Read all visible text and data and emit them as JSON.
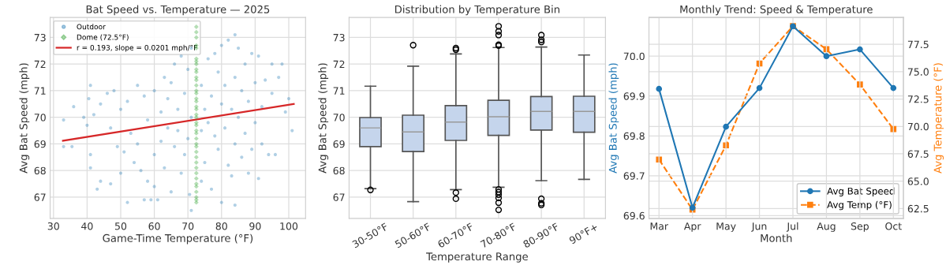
{
  "chart_data": [
    {
      "type": "scatter",
      "title": "Bat Speed vs. Temperature — 2025",
      "xlabel": "Game-Time Temperature (°F)",
      "ylabel": "Avg Bat Speed (mph)",
      "xlim": [
        29,
        105
      ],
      "ylim": [
        66.2,
        73.75
      ],
      "xticks": [
        30,
        40,
        50,
        60,
        70,
        80,
        90,
        100
      ],
      "yticks": [
        67,
        68,
        69,
        70,
        71,
        72,
        73
      ],
      "grid": true,
      "legend": "top left",
      "series": [
        {
          "name": "Outdoor",
          "color": "#1f77b4",
          "marker": "circle",
          "x": [
            33,
            33,
            35.5,
            36,
            39,
            40,
            40.5,
            41,
            41,
            41,
            42,
            43,
            44,
            44,
            46,
            47,
            47,
            48,
            49,
            50,
            50,
            51,
            52,
            52,
            53,
            54,
            55,
            55,
            56,
            57,
            57,
            58,
            58,
            59,
            60,
            60,
            60,
            61,
            62,
            62,
            63,
            63,
            64,
            64,
            65,
            65,
            66,
            66,
            67,
            67,
            68,
            68,
            69,
            69,
            70,
            70,
            70.5,
            71,
            71,
            71,
            74,
            74,
            74,
            75,
            75,
            76,
            76,
            77,
            77,
            78,
            78,
            79,
            79,
            80,
            80,
            80,
            81,
            81,
            82,
            82,
            83,
            83,
            84,
            84,
            84,
            84,
            85,
            85,
            86,
            86,
            87,
            87,
            88,
            88,
            89,
            89,
            90,
            90,
            91,
            91,
            92,
            92,
            93,
            94,
            95,
            95,
            96,
            97,
            98,
            99,
            100,
            101
          ],
          "values": [
            69.9,
            68.9,
            68.9,
            70.4,
            70.0,
            69.7,
            70.7,
            71.2,
            68.6,
            68.1,
            70.1,
            67.3,
            67.6,
            70.5,
            70.9,
            69.6,
            67.5,
            71.0,
            68.9,
            67.9,
            70.3,
            68.7,
            66.8,
            70.6,
            69.4,
            68.3,
            71.2,
            69.0,
            68.0,
            70.8,
            66.9,
            67.6,
            69.9,
            66.9,
            71.0,
            68.6,
            67.4,
            66.9,
            70.2,
            69.1,
            71.5,
            68.1,
            70.7,
            69.6,
            71.3,
            67.2,
            72.0,
            68.9,
            70.3,
            69.5,
            72.3,
            67.9,
            70.9,
            68.6,
            71.8,
            69.2,
            67.1,
            72.6,
            70.0,
            66.5,
            71.2,
            69.5,
            67.6,
            70.3,
            68.3,
            72.2,
            69.8,
            70.8,
            67.3,
            72.4,
            69.3,
            71.7,
            68.8,
            72.7,
            70.5,
            66.8,
            71.2,
            69.6,
            72.9,
            68.2,
            70.3,
            67.8,
            73.1,
            71.5,
            69.0,
            66.7,
            72.6,
            70.0,
            71.0,
            68.5,
            72.0,
            69.4,
            70.6,
            67.9,
            72.4,
            68.8,
            71.3,
            69.8,
            72.3,
            67.7,
            70.4,
            69.0,
            71.4,
            68.6,
            72.0,
            70.9,
            68.6,
            71.5,
            72.0,
            70.2,
            70.7,
            69.5
          ]
        },
        {
          "name": "Dome (72.5°F)",
          "color": "#2ca02c",
          "marker": "diamond",
          "x": [
            72.5,
            72.5,
            72.5,
            72.5,
            72.5,
            72.5,
            72.5,
            72.5,
            72.5,
            72.5,
            72.5,
            72.5,
            72.5,
            72.5,
            72.5,
            72.5,
            72.5,
            72.5,
            72.5,
            72.5,
            72.5,
            72.5,
            72.5,
            72.5,
            72.5,
            72.5,
            72.5,
            72.5,
            72.5,
            72.5,
            72.5,
            72.5,
            72.5,
            72.5,
            72.5,
            72.5,
            72.5,
            72.5,
            72.5,
            72.5
          ],
          "values": [
            66.8,
            67.0,
            67.2,
            67.4,
            67.5,
            67.7,
            67.9,
            68.1,
            68.3,
            68.5,
            68.7,
            68.9,
            69.0,
            69.2,
            69.4,
            69.5,
            69.7,
            69.8,
            70.0,
            70.1,
            70.3,
            70.4,
            70.6,
            70.7,
            70.9,
            71.0,
            71.2,
            71.4,
            71.5,
            71.7,
            71.8,
            72.0,
            72.1,
            72.2,
            72.6,
            72.7,
            73.0,
            73.2,
            73.4,
            66.9
          ]
        },
        {
          "type": "line",
          "name": "r = 0.193, slope = 0.0201 mph/°F",
          "color": "#d62728",
          "x": [
            32.8,
            101.5
          ],
          "values": [
            69.12,
            70.5
          ]
        }
      ]
    },
    {
      "type": "box",
      "title": "Distribution by Temperature Bin",
      "xlabel": "Temperature Range",
      "ylabel": "Avg Bat Speed (mph)",
      "categories": [
        "30-50°F",
        "50-60°F",
        "60-70°F",
        "70-80°F",
        "80-90°F",
        "90°F+"
      ],
      "ylim": [
        66.2,
        73.75
      ],
      "yticks": [
        67,
        68,
        69,
        70,
        71,
        72,
        73
      ],
      "grid": true,
      "series": [
        {
          "color": "#c5d5ec",
          "boxes": [
            {
              "low": 67.32,
              "q1": 68.9,
              "median": 69.6,
              "q3": 69.99,
              "high": 71.17,
              "outliers": [
                67.27
              ]
            },
            {
              "low": 66.83,
              "q1": 68.71,
              "median": 69.45,
              "q3": 70.08,
              "high": 71.92,
              "outliers": [
                72.71
              ]
            },
            {
              "low": 67.28,
              "q1": 69.13,
              "median": 69.82,
              "q3": 70.44,
              "high": 72.38,
              "outliers": [
                72.6,
                72.54,
                67.17,
                66.94
              ]
            },
            {
              "low": 67.37,
              "q1": 69.32,
              "median": 70.02,
              "q3": 70.64,
              "high": 72.62,
              "outliers": [
                73.42,
                73.23,
                73.09,
                72.73,
                72.69,
                67.29,
                67.19,
                67.09,
                66.97,
                66.79,
                66.52
              ]
            },
            {
              "low": 67.62,
              "q1": 69.52,
              "median": 70.22,
              "q3": 70.78,
              "high": 72.64,
              "outliers": [
                73.09,
                72.91,
                72.83,
                66.94,
                66.77,
                66.71
              ]
            },
            {
              "low": 67.67,
              "q1": 69.44,
              "median": 70.22,
              "q3": 70.79,
              "high": 72.34
            }
          ]
        }
      ]
    },
    {
      "type": "line",
      "title": "Monthly Trend: Speed & Temperature",
      "xlabel": "Month",
      "ylabel": "Avg Bat Speed (mph)",
      "y2label": "Avg Temperature (°F)",
      "categories": [
        "Mar",
        "Apr",
        "May",
        "Jun",
        "Jul",
        "Aug",
        "Sep",
        "Oct"
      ],
      "ylim": [
        69.593,
        70.097
      ],
      "yticks": [
        69.6,
        69.7,
        69.8,
        69.9,
        {
          "value": 70,
          "label": "70.0"
        }
      ],
      "y2lim": [
        61.6,
        79.95
      ],
      "y2ticks": [
        62.5,
        {
          "value": 65,
          "label": "65.0"
        },
        67.5,
        {
          "value": 70,
          "label": "70.0"
        },
        72.5,
        {
          "value": 75,
          "label": "75.0"
        },
        77.5
      ],
      "grid": true,
      "legend": "bottom right",
      "series": [
        {
          "name": "Avg Bat Speed",
          "color": "#1f77b4",
          "marker": "circle",
          "line_style": "solid",
          "values": [
            69.918,
            69.62,
            69.823,
            69.92,
            70.075,
            70.0,
            70.017,
            69.92
          ]
        },
        {
          "name": "Avg Temp (°F)",
          "color": "#ff7f0e",
          "marker": "square",
          "line_style": "dashed",
          "axis": "y2",
          "values": [
            66.98,
            62.4,
            68.27,
            75.75,
            79.16,
            77.05,
            73.83,
            69.76
          ]
        }
      ]
    }
  ]
}
